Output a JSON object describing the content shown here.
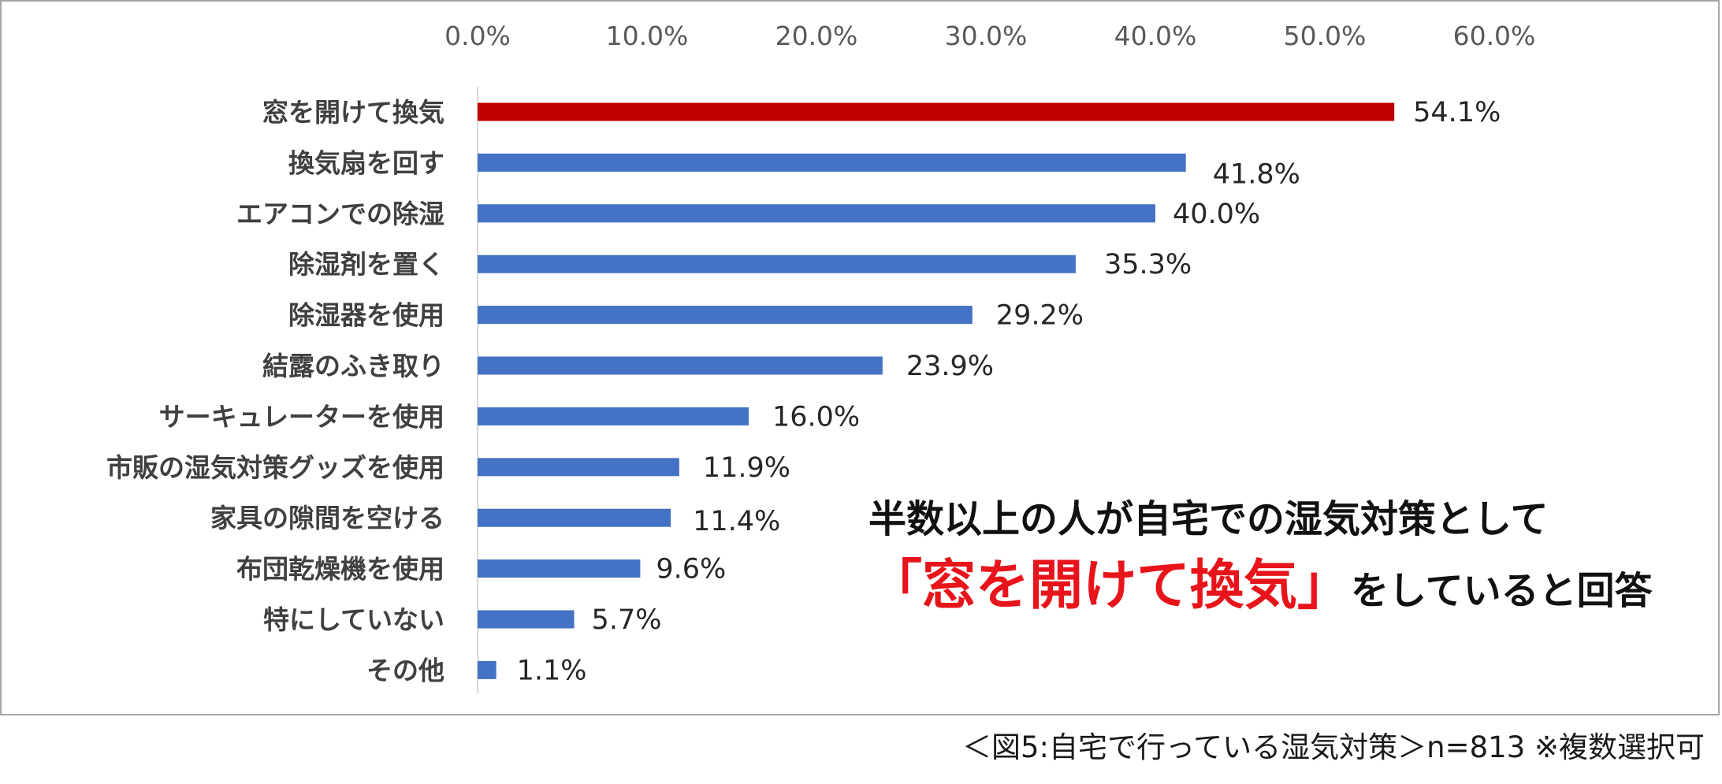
{
  "chart_data": {
    "type": "bar",
    "orientation": "horizontal",
    "categories": [
      "窓を開けて換気",
      "換気扇を回す",
      "エアコンでの除湿",
      "除湿剤を置く",
      "除湿器を使用",
      "結露のふき取り",
      "サーキュレーターを使用",
      "市販の湿気対策グッズを使用",
      "家具の隙間を空ける",
      "布団乾燥機を使用",
      "特にしていない",
      "その他"
    ],
    "values": [
      54.1,
      41.8,
      40.0,
      35.3,
      29.2,
      23.9,
      16.0,
      11.9,
      11.4,
      9.6,
      5.7,
      1.1
    ],
    "value_labels": [
      "54.1%",
      "41.8%",
      "40.0%",
      "35.3%",
      "29.2%",
      "23.9%",
      "16.0%",
      "11.9%",
      "11.4%",
      "9.6%",
      "5.7%",
      "1.1%"
    ],
    "xlim": [
      0,
      60
    ],
    "x_ticks": [
      0,
      10,
      20,
      30,
      40,
      50,
      60
    ],
    "x_tick_labels": [
      "0.0%",
      "10.0%",
      "20.0%",
      "30.0%",
      "40.0%",
      "50.0%",
      "60.0%"
    ],
    "axis_position": "top",
    "grid": false,
    "legend": "none",
    "colors": {
      "highlight_bar": "#c00000",
      "bar": "#4472c4",
      "axis_line": "#d9d9d9",
      "frame": "#a6a6a6"
    },
    "highlight_index": 0
  },
  "callout": {
    "line1": "半数以上の人が自宅での湿気対策として",
    "highlight": "「窓を開けて換気」",
    "tail": "をしていると回答",
    "highlight_color": "#e8141b"
  },
  "caption": "＜図5:自宅で行っている湿気対策＞n=813 ※複数選択可"
}
